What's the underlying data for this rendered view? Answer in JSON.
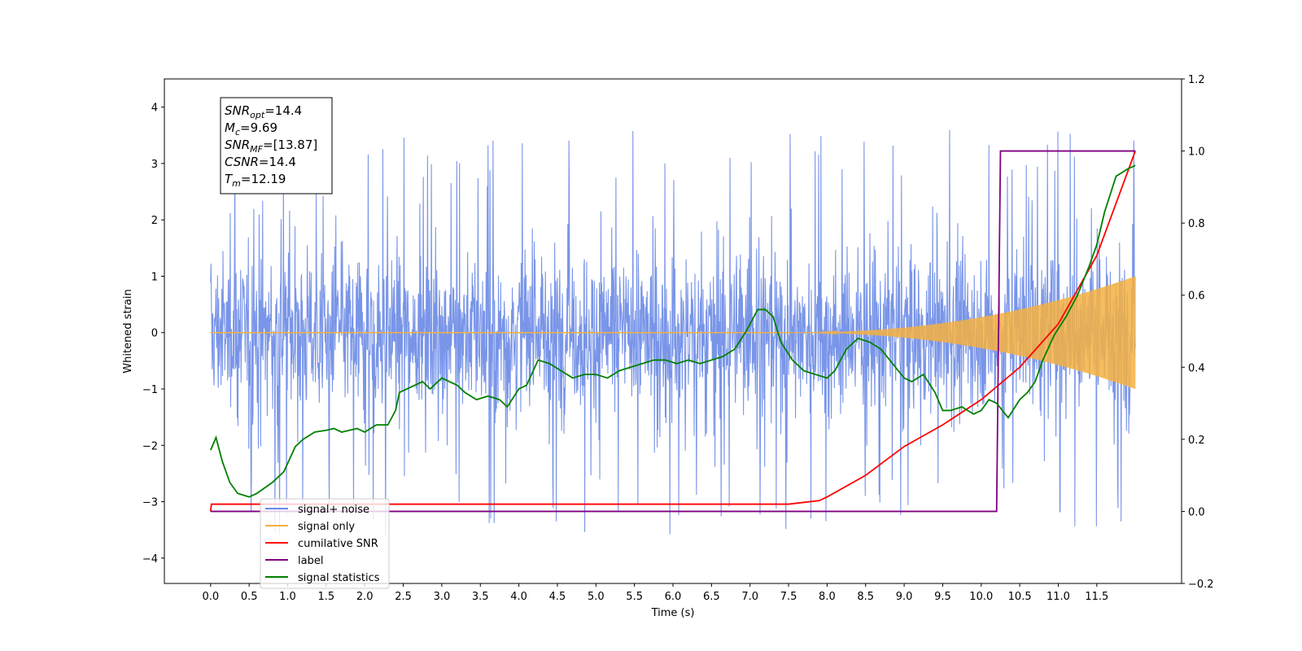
{
  "chart_data": {
    "type": "line",
    "xlabel": "Time (s)",
    "ylabel": "Whitened strain",
    "xlim": [
      -0.6,
      12.6
    ],
    "ylim": [
      -4.45,
      4.5
    ],
    "y2lim": [
      -0.2,
      1.2
    ],
    "xticks": [
      "0.0",
      "0.5",
      "1.0",
      "1.5",
      "2.0",
      "2.5",
      "3.0",
      "3.5",
      "4.0",
      "4.5",
      "5.0",
      "5.5",
      "6.0",
      "6.5",
      "7.0",
      "7.5",
      "8.0",
      "8.5",
      "9.0",
      "9.5",
      "10.0",
      "10.5",
      "11.0",
      "11.5"
    ],
    "yticks": [
      "4",
      "3",
      "2",
      "1",
      "0",
      "−1",
      "−2",
      "−3",
      "−4"
    ],
    "y2ticks": [
      "1.2",
      "1.0",
      "0.8",
      "0.6",
      "0.4",
      "0.2",
      "0.0",
      "−0.2"
    ],
    "colors": {
      "signal_noise": "#6a89e6",
      "signal_only": "#f5b041",
      "cumulative_snr": "#ff0000",
      "label": "#800080",
      "signal_statistics": "#008000"
    },
    "noise_band": {
      "x_start": 0.0,
      "x_end": 12.0,
      "dense_range": [
        -1.6,
        1.6
      ],
      "spike_max": 3.95,
      "spike_min": -4.05
    },
    "signal_only": {
      "x_start": 7.5,
      "x_end": 12.0,
      "amplitude_end": 1.0,
      "baseline": 0.0
    },
    "series": [
      {
        "name": "cumilative SNR",
        "axis": "right",
        "x": [
          0.0,
          0.01,
          7.5,
          7.9,
          8.0,
          8.5,
          9.0,
          9.5,
          10.0,
          10.5,
          11.0,
          11.5,
          12.0
        ],
        "y": [
          0.0,
          0.02,
          0.02,
          0.03,
          0.04,
          0.1,
          0.18,
          0.24,
          0.31,
          0.4,
          0.52,
          0.71,
          1.0
        ]
      },
      {
        "name": "label",
        "axis": "right",
        "x": [
          0.0,
          10.2,
          10.25,
          12.0
        ],
        "y": [
          0.0,
          0.0,
          1.0,
          1.0
        ]
      },
      {
        "name": "signal statistics",
        "axis": "right",
        "x": [
          0.0,
          0.07,
          0.15,
          0.25,
          0.35,
          0.5,
          0.6,
          0.8,
          0.95,
          1.1,
          1.2,
          1.35,
          1.5,
          1.6,
          1.7,
          1.9,
          2.0,
          2.15,
          2.3,
          2.4,
          2.45,
          2.55,
          2.65,
          2.75,
          2.85,
          3.0,
          3.1,
          3.2,
          3.3,
          3.45,
          3.6,
          3.75,
          3.85,
          4.0,
          4.1,
          4.25,
          4.4,
          4.55,
          4.7,
          4.85,
          5.0,
          5.15,
          5.3,
          5.45,
          5.6,
          5.75,
          5.9,
          6.05,
          6.2,
          6.35,
          6.5,
          6.65,
          6.8,
          6.95,
          7.1,
          7.2,
          7.3,
          7.4,
          7.55,
          7.7,
          7.85,
          8.0,
          8.1,
          8.25,
          8.4,
          8.55,
          8.7,
          8.85,
          9.0,
          9.1,
          9.25,
          9.4,
          9.5,
          9.6,
          9.75,
          9.9,
          10.0,
          10.1,
          10.2,
          10.35,
          10.5,
          10.6,
          10.7,
          10.8,
          10.95,
          11.1,
          11.25,
          11.4,
          11.5,
          11.6,
          11.75,
          11.9,
          12.0
        ],
        "y": [
          0.17,
          0.205,
          0.14,
          0.08,
          0.05,
          0.04,
          0.05,
          0.08,
          0.11,
          0.18,
          0.2,
          0.22,
          0.225,
          0.23,
          0.22,
          0.23,
          0.22,
          0.24,
          0.24,
          0.28,
          0.33,
          0.34,
          0.35,
          0.36,
          0.34,
          0.37,
          0.36,
          0.35,
          0.33,
          0.31,
          0.32,
          0.31,
          0.29,
          0.34,
          0.35,
          0.42,
          0.41,
          0.39,
          0.37,
          0.38,
          0.38,
          0.37,
          0.39,
          0.4,
          0.41,
          0.42,
          0.42,
          0.41,
          0.42,
          0.41,
          0.42,
          0.43,
          0.45,
          0.5,
          0.56,
          0.56,
          0.54,
          0.47,
          0.42,
          0.39,
          0.38,
          0.37,
          0.39,
          0.45,
          0.48,
          0.47,
          0.45,
          0.41,
          0.37,
          0.36,
          0.38,
          0.33,
          0.28,
          0.28,
          0.29,
          0.27,
          0.28,
          0.31,
          0.3,
          0.26,
          0.31,
          0.33,
          0.36,
          0.42,
          0.49,
          0.54,
          0.6,
          0.68,
          0.74,
          0.83,
          0.93,
          0.95,
          0.96
        ]
      }
    ],
    "legend": {
      "placement": "lower-left",
      "entries": [
        {
          "label": "signal+ noise",
          "color": "#6a89e6"
        },
        {
          "label": "signal only",
          "color": "#f5b041"
        },
        {
          "label": "cumilative SNR",
          "color": "#ff0000"
        },
        {
          "label": "label",
          "color": "#800080"
        },
        {
          "label": "signal statistics",
          "color": "#008000"
        }
      ]
    },
    "annotation": {
      "lines": [
        {
          "main": "SNR",
          "sub": "opt",
          "rest": "=14.4"
        },
        {
          "main": "M",
          "sub": "c",
          "rest": "=9.69"
        },
        {
          "main": "SNR",
          "sub": "MF",
          "rest": "=[13.87]"
        },
        {
          "main": "CSNR",
          "sub": "",
          "rest": "=14.4"
        },
        {
          "main": "T",
          "sub": "m",
          "rest": "=12.19"
        }
      ]
    }
  }
}
